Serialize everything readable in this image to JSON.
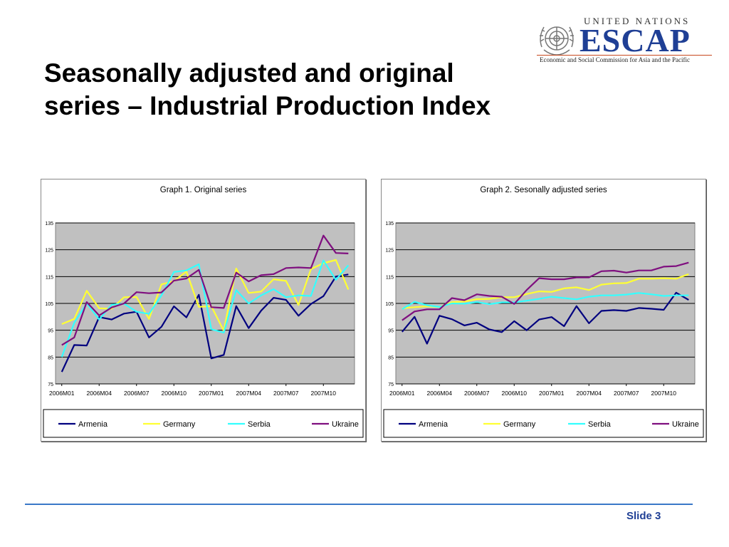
{
  "slide": {
    "title_line1": "Seasonally adjusted and original",
    "title_line2": "series – Industrial Production Index",
    "footer": "Slide 3"
  },
  "logo": {
    "top_text": "UNITED NATIONS",
    "main_text": "ESCAP",
    "subtitle": "Economic and Social Commission for Asia and the Pacific"
  },
  "colors": {
    "Armenia": "#00007f",
    "Germany": "#ffff33",
    "Serbia": "#33ffff",
    "Ukraine": "#7f0f7f",
    "plot_bg": "#c0c0c0"
  },
  "chart_data": [
    {
      "type": "line",
      "title": "Graph 1. Original series",
      "x": [
        "2006M01",
        "2006M02",
        "2006M03",
        "2006M04",
        "2006M05",
        "2006M06",
        "2006M07",
        "2006M08",
        "2006M09",
        "2006M10",
        "2006M11",
        "2006M12",
        "2007M01",
        "2007M02",
        "2007M03",
        "2007M04",
        "2007M05",
        "2007M06",
        "2007M07",
        "2007M08",
        "2007M09",
        "2007M10",
        "2007M11",
        "2007M12"
      ],
      "xticks": [
        "2006M01",
        "2006M04",
        "2006M07",
        "2006M10",
        "2007M01",
        "2007M04",
        "2007M07",
        "2007M10"
      ],
      "ylim": [
        75,
        135
      ],
      "yticks": [
        75,
        85,
        95,
        105,
        115,
        125,
        135
      ],
      "grid": true,
      "legend": "bottom",
      "series": [
        {
          "name": "Armenia",
          "values": [
            79.5,
            89.5,
            89.3,
            99.9,
            99.0,
            101.2,
            101.9,
            92.3,
            96.3,
            103.9,
            99.8,
            108.2,
            84.5,
            85.8,
            104.0,
            95.8,
            102.3,
            107.1,
            106.3,
            100.4,
            104.8,
            107.7,
            115.0,
            115.8
          ]
        },
        {
          "name": "Germany",
          "values": [
            97.3,
            99.2,
            109.7,
            103.2,
            103.0,
            107.3,
            107.4,
            99.2,
            112.1,
            113.3,
            116.9,
            103.7,
            104.0,
            94.8,
            118.0,
            108.9,
            109.4,
            114.0,
            113.4,
            104.4,
            117.8,
            120.0,
            121.2,
            110.2
          ]
        },
        {
          "name": "Serbia",
          "values": [
            85.0,
            97.8,
            105.0,
            99.0,
            104.5,
            104.9,
            101.9,
            101.1,
            108.0,
            116.7,
            117.3,
            119.6,
            95.4,
            94.1,
            110.0,
            105.0,
            108.0,
            110.3,
            107.3,
            108.0,
            107.8,
            121.0,
            113.8,
            119.2
          ]
        },
        {
          "name": "Ukraine",
          "values": [
            89.5,
            92.3,
            105.5,
            100.5,
            103.5,
            105.0,
            109.2,
            108.8,
            109.1,
            113.5,
            114.3,
            117.5,
            103.6,
            103.3,
            116.5,
            113.2,
            115.5,
            115.9,
            118.2,
            118.4,
            118.2,
            130.3,
            123.8,
            123.6
          ]
        }
      ]
    },
    {
      "type": "line",
      "title": "Graph 2. Sesonally adjusted series",
      "x": [
        "2006M01",
        "2006M02",
        "2006M03",
        "2006M04",
        "2006M05",
        "2006M06",
        "2006M07",
        "2006M08",
        "2006M09",
        "2006M10",
        "2006M11",
        "2006M12",
        "2007M01",
        "2007M02",
        "2007M03",
        "2007M04",
        "2007M05",
        "2007M06",
        "2007M07",
        "2007M08",
        "2007M09",
        "2007M10",
        "2007M11",
        "2007M12"
      ],
      "xticks": [
        "2006M01",
        "2006M04",
        "2006M07",
        "2006M10",
        "2007M01",
        "2007M04",
        "2007M07",
        "2007M10"
      ],
      "ylim": [
        75,
        135
      ],
      "yticks": [
        75,
        85,
        95,
        105,
        115,
        125,
        135
      ],
      "grid": true,
      "legend": "bottom",
      "series": [
        {
          "name": "Armenia",
          "values": [
            94.4,
            100.0,
            90.0,
            100.4,
            99.1,
            96.8,
            97.8,
            95.3,
            94.3,
            98.4,
            95.0,
            99.0,
            99.9,
            96.5,
            104.0,
            97.6,
            102.2,
            102.5,
            102.2,
            103.3,
            103.0,
            102.6,
            109.0,
            106.3
          ]
        },
        {
          "name": "Germany",
          "values": [
            103.2,
            103.6,
            103.9,
            103.7,
            105.5,
            105.7,
            106.6,
            106.7,
            107.3,
            107.3,
            108.5,
            109.5,
            109.3,
            110.6,
            111.0,
            110.0,
            112.0,
            112.5,
            112.6,
            114.2,
            114.2,
            114.4,
            114.2,
            115.9
          ]
        },
        {
          "name": "Serbia",
          "values": [
            102.9,
            105.6,
            104.3,
            103.7,
            105.0,
            104.9,
            105.5,
            104.7,
            105.4,
            105.4,
            106.0,
            106.7,
            107.5,
            107.0,
            106.5,
            107.5,
            108.0,
            108.0,
            108.3,
            108.9,
            108.4,
            107.8,
            108.0,
            108.0
          ]
        },
        {
          "name": "Ukraine",
          "values": [
            98.7,
            102.0,
            102.8,
            102.8,
            107.0,
            106.2,
            108.4,
            107.8,
            107.5,
            104.8,
            110.0,
            114.4,
            114.0,
            114.0,
            114.7,
            114.7,
            117.0,
            117.2,
            116.5,
            117.3,
            117.3,
            118.7,
            118.9,
            120.2
          ]
        }
      ]
    }
  ]
}
